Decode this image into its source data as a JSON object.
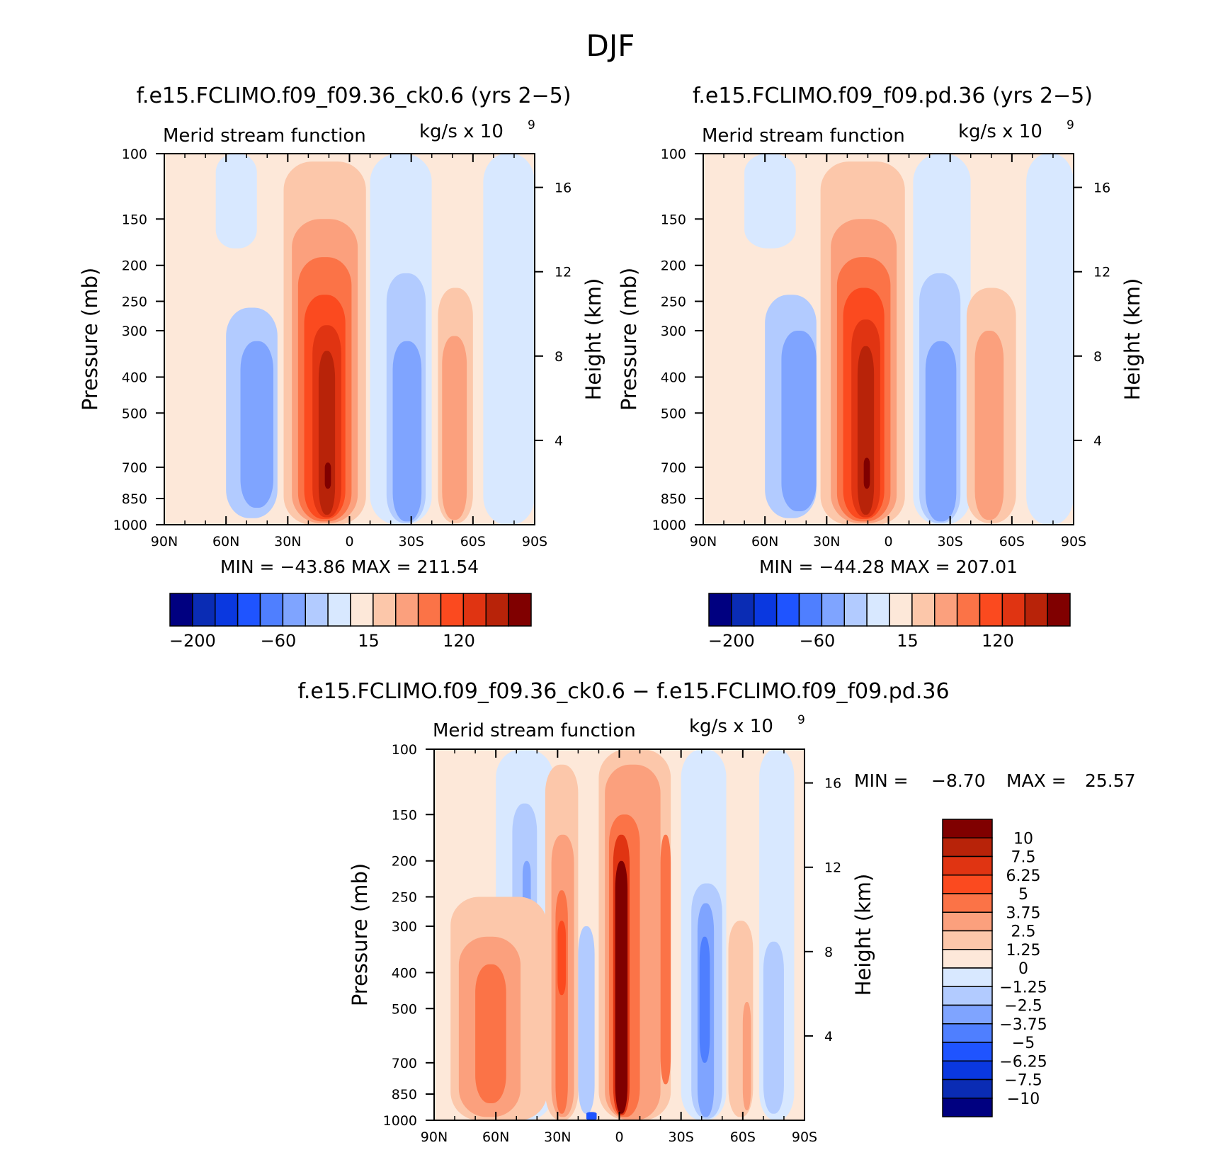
{
  "figure_title": "DJF",
  "colors": {
    "neg": [
      "#000080",
      "#0a2cb4",
      "#0a38e0",
      "#1f54ff",
      "#4f7fff",
      "#7fa4ff",
      "#b2cbff",
      "#d8e8ff"
    ],
    "pos": [
      "#fde8d9",
      "#fcc7aa",
      "#fba07d",
      "#fb7347",
      "#fb4a1f",
      "#e03412",
      "#b82309",
      "#800000"
    ]
  },
  "chart_data": [
    {
      "type": "heatmap",
      "title": "f.e15.FCLIMO.f09_f09.36_ck0.6 (yrs 2−5)",
      "left_label": "Merid stream function",
      "units_label": "kg/s x 10",
      "units_exp": "9",
      "xlabel": "",
      "ylabel": "Pressure (mb)",
      "ylabel_right": "Height (km)",
      "x_ticks": [
        "90N",
        "60N",
        "30N",
        "0",
        "30S",
        "60S",
        "90S"
      ],
      "x_values": [
        90,
        60,
        30,
        0,
        -30,
        -60,
        -90
      ],
      "y_ticks": [
        "100",
        "150",
        "200",
        "250",
        "300",
        "400",
        "500",
        "700",
        "850",
        "1000"
      ],
      "y_values": [
        100,
        150,
        200,
        250,
        300,
        400,
        500,
        700,
        850,
        1000
      ],
      "ylim": [
        1000,
        100
      ],
      "height_ticks": [
        "16",
        "12",
        "8",
        "4"
      ],
      "height_values": [
        16,
        12,
        8,
        4
      ],
      "stats": "MIN = −43.86   MAX = 211.54",
      "min": -43.86,
      "max": 211.54,
      "colorbar_labels": [
        "−200",
        "−60",
        "15",
        "120"
      ],
      "cells": [
        {
          "lat": [
            90,
            65
          ],
          "p": [
            100,
            1000
          ],
          "level": 8
        },
        {
          "lat": [
            65,
            45
          ],
          "p": [
            100,
            180
          ],
          "level": 7
        },
        {
          "lat": [
            60,
            35
          ],
          "p": [
            260,
            960
          ],
          "level": 6
        },
        {
          "lat": [
            53,
            37
          ],
          "p": [
            320,
            900
          ],
          "level": 5
        },
        {
          "lat": [
            32,
            -8
          ],
          "p": [
            105,
            1000
          ],
          "level": 9
        },
        {
          "lat": [
            28,
            -4
          ],
          "p": [
            150,
            990
          ],
          "level": 10
        },
        {
          "lat": [
            25,
            -1
          ],
          "p": [
            190,
            980
          ],
          "level": 11
        },
        {
          "lat": [
            22,
            2
          ],
          "p": [
            240,
            965
          ],
          "level": 12
        },
        {
          "lat": [
            18,
            4
          ],
          "p": [
            290,
            955
          ],
          "level": 13
        },
        {
          "lat": [
            15,
            7
          ],
          "p": [
            340,
            940
          ],
          "level": 14
        },
        {
          "lat": [
            12,
            9
          ],
          "p": [
            680,
            800
          ],
          "level": 15
        },
        {
          "lat": [
            -10,
            -40
          ],
          "p": [
            100,
            1000
          ],
          "level": 7
        },
        {
          "lat": [
            -18,
            -37
          ],
          "p": [
            210,
            990
          ],
          "level": 6
        },
        {
          "lat": [
            -21,
            -35
          ],
          "p": [
            320,
            980
          ],
          "level": 5
        },
        {
          "lat": [
            -40,
            -65
          ],
          "p": [
            100,
            1000
          ],
          "level": 8
        },
        {
          "lat": [
            -43,
            -60
          ],
          "p": [
            230,
            990
          ],
          "level": 9
        },
        {
          "lat": [
            -45,
            -57
          ],
          "p": [
            310,
            970
          ],
          "level": 10
        },
        {
          "lat": [
            -65,
            -90
          ],
          "p": [
            100,
            1000
          ],
          "level": 7
        }
      ]
    },
    {
      "type": "heatmap",
      "title": "f.e15.FCLIMO.f09_f09.pd.36 (yrs 2−5)",
      "left_label": "Merid stream function",
      "units_label": "kg/s x 10",
      "units_exp": "9",
      "xlabel": "",
      "ylabel": "Pressure (mb)",
      "ylabel_right": "Height (km)",
      "x_ticks": [
        "90N",
        "60N",
        "30N",
        "0",
        "30S",
        "60S",
        "90S"
      ],
      "x_values": [
        90,
        60,
        30,
        0,
        -30,
        -60,
        -90
      ],
      "y_ticks": [
        "100",
        "150",
        "200",
        "250",
        "300",
        "400",
        "500",
        "700",
        "850",
        "1000"
      ],
      "y_values": [
        100,
        150,
        200,
        250,
        300,
        400,
        500,
        700,
        850,
        1000
      ],
      "ylim": [
        1000,
        100
      ],
      "height_ticks": [
        "16",
        "12",
        "8",
        "4"
      ],
      "height_values": [
        16,
        12,
        8,
        4
      ],
      "stats": "MIN = −44.28   MAX = 207.01",
      "min": -44.28,
      "max": 207.01,
      "colorbar_labels": [
        "−200",
        "−60",
        "15",
        "120"
      ],
      "cells": [
        {
          "lat": [
            90,
            70
          ],
          "p": [
            100,
            1000
          ],
          "level": 8
        },
        {
          "lat": [
            70,
            45
          ],
          "p": [
            100,
            180
          ],
          "level": 7
        },
        {
          "lat": [
            60,
            35
          ],
          "p": [
            240,
            960
          ],
          "level": 6
        },
        {
          "lat": [
            52,
            35
          ],
          "p": [
            300,
            920
          ],
          "level": 5
        },
        {
          "lat": [
            33,
            -8
          ],
          "p": [
            105,
            1000
          ],
          "level": 9
        },
        {
          "lat": [
            28,
            -4
          ],
          "p": [
            150,
            990
          ],
          "level": 10
        },
        {
          "lat": [
            25,
            -1
          ],
          "p": [
            190,
            980
          ],
          "level": 11
        },
        {
          "lat": [
            22,
            2
          ],
          "p": [
            230,
            965
          ],
          "level": 12
        },
        {
          "lat": [
            18,
            4
          ],
          "p": [
            280,
            955
          ],
          "level": 13
        },
        {
          "lat": [
            15,
            7
          ],
          "p": [
            330,
            940
          ],
          "level": 14
        },
        {
          "lat": [
            12,
            9
          ],
          "p": [
            660,
            800
          ],
          "level": 15
        },
        {
          "lat": [
            -12,
            -40
          ],
          "p": [
            100,
            1000
          ],
          "level": 7
        },
        {
          "lat": [
            -15,
            -35
          ],
          "p": [
            210,
            990
          ],
          "level": 6
        },
        {
          "lat": [
            -18,
            -33
          ],
          "p": [
            320,
            980
          ],
          "level": 5
        },
        {
          "lat": [
            -40,
            -67
          ],
          "p": [
            100,
            1000
          ],
          "level": 8
        },
        {
          "lat": [
            -38,
            -62
          ],
          "p": [
            230,
            990
          ],
          "level": 9
        },
        {
          "lat": [
            -42,
            -56
          ],
          "p": [
            300,
            970
          ],
          "level": 10
        },
        {
          "lat": [
            -67,
            -90
          ],
          "p": [
            100,
            1000
          ],
          "level": 7
        }
      ]
    },
    {
      "type": "heatmap",
      "title": "f.e15.FCLIMO.f09_f09.36_ck0.6 − f.e15.FCLIMO.f09_f09.pd.36",
      "left_label": "Merid stream function",
      "units_label": "kg/s x 10",
      "units_exp": "9",
      "xlabel": "",
      "ylabel": "Pressure (mb)",
      "ylabel_right": "Height (km)",
      "x_ticks": [
        "90N",
        "60N",
        "30N",
        "0",
        "30S",
        "60S",
        "90S"
      ],
      "x_values": [
        90,
        60,
        30,
        0,
        -30,
        -60,
        -90
      ],
      "y_ticks": [
        "100",
        "150",
        "200",
        "250",
        "300",
        "400",
        "500",
        "700",
        "850",
        "1000"
      ],
      "y_values": [
        100,
        150,
        200,
        250,
        300,
        400,
        500,
        700,
        850,
        1000
      ],
      "ylim": [
        1000,
        100
      ],
      "height_ticks": [
        "16",
        "12",
        "8",
        "4"
      ],
      "height_values": [
        16,
        12,
        8,
        4
      ],
      "stats_min_label": "MIN =",
      "stats_min_value": "−8.70",
      "stats_max_label": "MAX =",
      "stats_max_value": "25.57",
      "min": -8.7,
      "max": 25.57,
      "colorbar_labels": [
        "10",
        "7.5",
        "6.25",
        "5",
        "3.75",
        "2.5",
        "1.25",
        "0",
        "−1.25",
        "−2.5",
        "−3.75",
        "−5",
        "−6.25",
        "−7.5",
        "−10"
      ],
      "cells": [
        {
          "lat": [
            90,
            60
          ],
          "p": [
            100,
            1000
          ],
          "level": 8
        },
        {
          "lat": [
            60,
            32
          ],
          "p": [
            100,
            1000
          ],
          "level": 7
        },
        {
          "lat": [
            52,
            40
          ],
          "p": [
            140,
            420
          ],
          "level": 6
        },
        {
          "lat": [
            47,
            43
          ],
          "p": [
            200,
            300
          ],
          "level": 5
        },
        {
          "lat": [
            82,
            35
          ],
          "p": [
            250,
            1000
          ],
          "level": 9
        },
        {
          "lat": [
            78,
            48
          ],
          "p": [
            320,
            980
          ],
          "level": 10
        },
        {
          "lat": [
            70,
            55
          ],
          "p": [
            380,
            900
          ],
          "level": 11
        },
        {
          "lat": [
            36,
            20
          ],
          "p": [
            110,
            1000
          ],
          "level": 9
        },
        {
          "lat": [
            33,
            22
          ],
          "p": [
            170,
            980
          ],
          "level": 10
        },
        {
          "lat": [
            31,
            25
          ],
          "p": [
            240,
            960
          ],
          "level": 11
        },
        {
          "lat": [
            30,
            26
          ],
          "p": [
            290,
            460
          ],
          "level": 12
        },
        {
          "lat": [
            20,
            12
          ],
          "p": [
            300,
            960
          ],
          "level": 6
        },
        {
          "lat": [
            16,
            11
          ],
          "p": [
            950,
            1000
          ],
          "level": 3
        },
        {
          "lat": [
            10,
            -25
          ],
          "p": [
            100,
            1000
          ],
          "level": 9
        },
        {
          "lat": [
            7,
            -20
          ],
          "p": [
            110,
            1000
          ],
          "level": 10
        },
        {
          "lat": [
            5,
            -10
          ],
          "p": [
            150,
            980
          ],
          "level": 11
        },
        {
          "lat": [
            3,
            -5
          ],
          "p": [
            170,
            970
          ],
          "level": 13
        },
        {
          "lat": [
            2,
            -4
          ],
          "p": [
            200,
            960
          ],
          "level": 15
        },
        {
          "lat": [
            -20,
            -25
          ],
          "p": [
            170,
            800
          ],
          "level": 11
        },
        {
          "lat": [
            -30,
            -52
          ],
          "p": [
            100,
            1000
          ],
          "level": 7
        },
        {
          "lat": [
            -35,
            -50
          ],
          "p": [
            230,
            990
          ],
          "level": 6
        },
        {
          "lat": [
            -38,
            -46
          ],
          "p": [
            260,
            980
          ],
          "level": 5
        },
        {
          "lat": [
            -39,
            -44
          ],
          "p": [
            320,
            700
          ],
          "level": 4
        },
        {
          "lat": [
            -52,
            -68
          ],
          "p": [
            100,
            1000
          ],
          "level": 8
        },
        {
          "lat": [
            -53,
            -65
          ],
          "p": [
            290,
            980
          ],
          "level": 9
        },
        {
          "lat": [
            -60,
            -64
          ],
          "p": [
            480,
            940
          ],
          "level": 10
        },
        {
          "lat": [
            -68,
            -85
          ],
          "p": [
            100,
            1000
          ],
          "level": 7
        },
        {
          "lat": [
            -70,
            -80
          ],
          "p": [
            330,
            960
          ],
          "level": 6
        },
        {
          "lat": [
            -85,
            -90
          ],
          "p": [
            100,
            1000
          ],
          "level": 8
        }
      ]
    }
  ]
}
